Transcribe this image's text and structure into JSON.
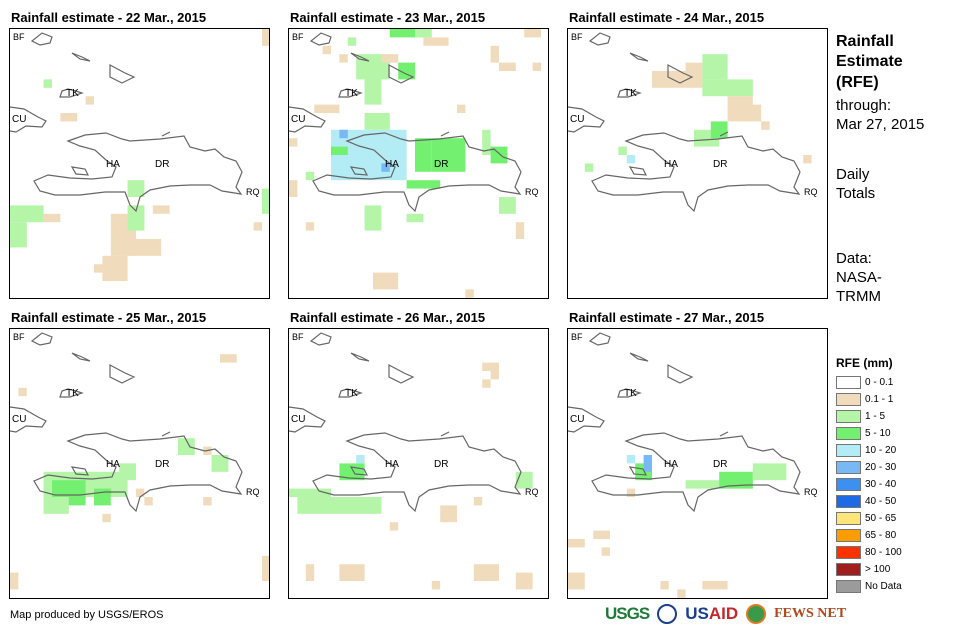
{
  "panels": [
    {
      "title": "Rainfall estimate - 22 Mar., 2015"
    },
    {
      "title": "Rainfall estimate - 23 Mar., 2015"
    },
    {
      "title": "Rainfall estimate - 24 Mar., 2015"
    },
    {
      "title": "Rainfall estimate - 25 Mar., 2015"
    },
    {
      "title": "Rainfall estimate - 26 Mar., 2015"
    },
    {
      "title": "Rainfall estimate - 27 Mar., 2015"
    }
  ],
  "map_labels": {
    "bf": "BF",
    "tk": "TK",
    "cu": "CU",
    "ha": "HA",
    "dr": "DR",
    "rq": "RQ"
  },
  "side": {
    "title1": "Rainfall",
    "title2": "Estimate",
    "title3": "(RFE)",
    "through_label": "through:",
    "through_date": "Mar 27, 2015",
    "daily1": "Daily",
    "daily2": "Totals",
    "data1": "Data:",
    "data2": "NASA-",
    "data3": "TRMM"
  },
  "legend": {
    "title": "RFE (mm)",
    "items": [
      {
        "label": "0 - 0.1",
        "color": "#ffffff"
      },
      {
        "label": "0.1 - 1",
        "color": "#f0dcbc"
      },
      {
        "label": "1 - 5",
        "color": "#b4f5a8"
      },
      {
        "label": "5 - 10",
        "color": "#74f070"
      },
      {
        "label": "10 - 20",
        "color": "#b4ecf5"
      },
      {
        "label": "20 - 30",
        "color": "#78b8f5"
      },
      {
        "label": "30 - 40",
        "color": "#3c90f0"
      },
      {
        "label": "40 - 50",
        "color": "#1e6ae6"
      },
      {
        "label": "50 - 65",
        "color": "#fde57a"
      },
      {
        "label": "65 - 80",
        "color": "#fa9d00"
      },
      {
        "label": "80 - 100",
        "color": "#fa3200"
      },
      {
        "label": "> 100",
        "color": "#a01e1e"
      },
      {
        "label": "No Data",
        "color": "#9b9b9b"
      }
    ]
  },
  "footer": {
    "credit": "Map produced by USGS/EROS"
  },
  "logos": {
    "usgs": "USGS",
    "usaid_us": "US",
    "usaid_aid": "AID",
    "fews": "FEWS NET"
  }
}
